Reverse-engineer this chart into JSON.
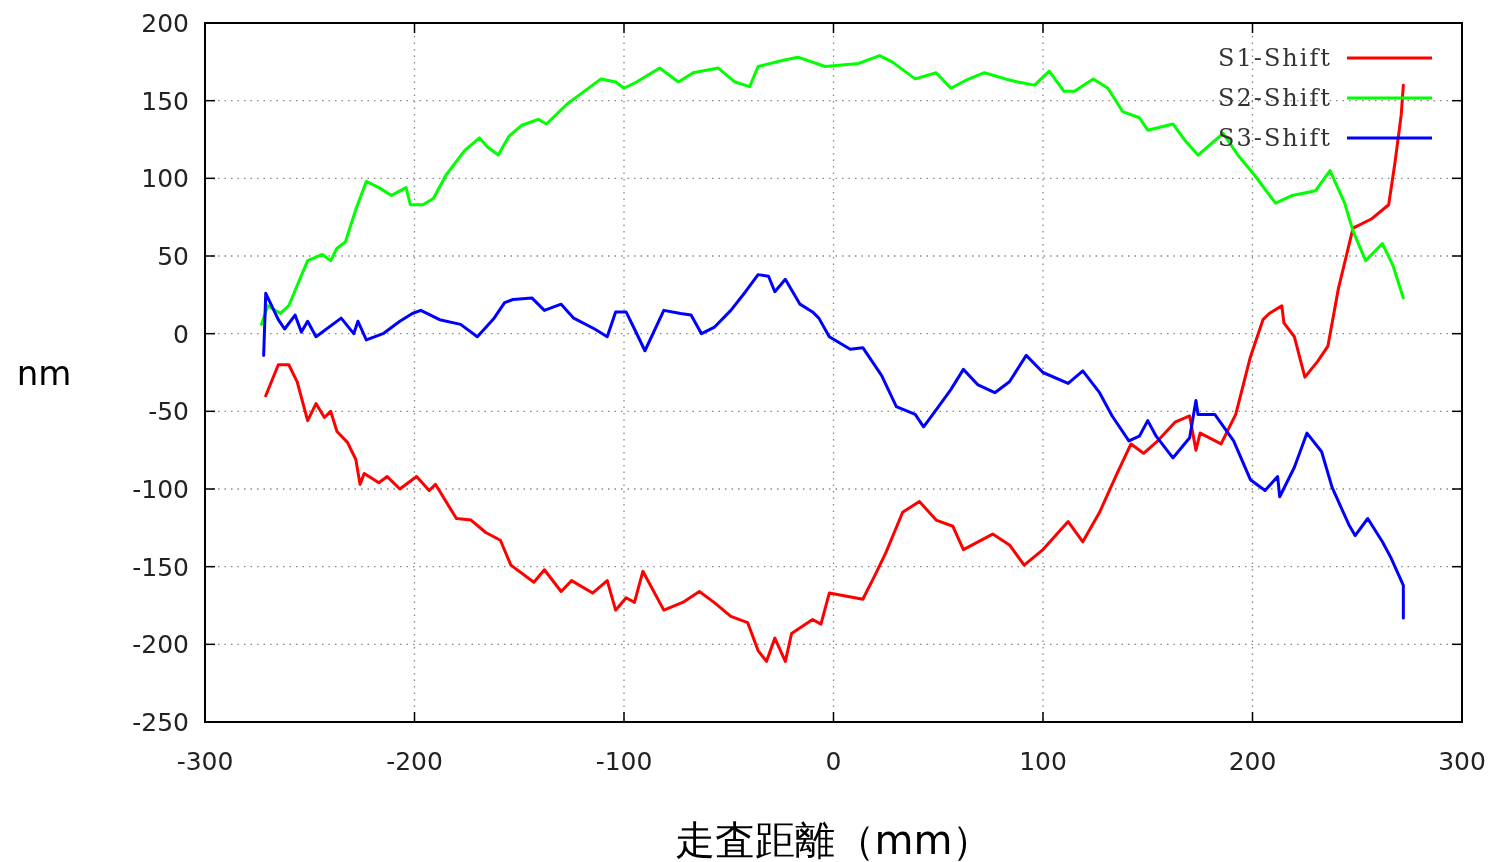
{
  "chart_data": {
    "type": "line",
    "xlabel": "走査距離（mm）",
    "ylabel": "nm",
    "xlim": [
      -300,
      300
    ],
    "xticks": [
      -300,
      -200,
      -100,
      0,
      100,
      200,
      300
    ],
    "ylim": [
      -250,
      200
    ],
    "yticks": [
      -250,
      -200,
      -150,
      -100,
      -50,
      0,
      50,
      100,
      150,
      200
    ],
    "grid": true,
    "legend": "top right",
    "series": [
      {
        "name": "S1-Shift",
        "color": "#ff0000",
        "x": [
          -271,
          -265,
          -260,
          -256,
          -251,
          -247,
          -243,
          -240,
          -237,
          -232,
          -228,
          -226,
          -224,
          -217,
          -213,
          -207,
          -199,
          -193,
          -190,
          -180,
          -173,
          -166,
          -159,
          -154,
          -143,
          -138,
          -130,
          -125,
          -115,
          -108,
          -104,
          -99,
          -95,
          -91,
          -81,
          -72,
          -64,
          -57,
          -49,
          -41,
          -36,
          -32,
          -28,
          -23,
          -20,
          -10,
          -6,
          -2,
          14,
          20,
          25,
          33,
          41,
          49,
          57,
          62,
          76,
          84,
          91,
          100,
          112,
          119,
          127,
          135,
          142,
          148,
          154,
          163,
          170,
          173,
          175,
          185,
          192,
          199,
          205,
          208,
          214,
          215,
          220,
          225,
          231,
          236,
          241,
          248,
          257,
          265,
          268,
          271,
          272
        ],
        "values": [
          -40,
          -20,
          -20,
          -31,
          -56,
          -45,
          -54,
          -50,
          -63,
          -70,
          -81,
          -97,
          -90,
          -96,
          -92,
          -100,
          -92,
          -101,
          -97,
          -119,
          -120,
          -128,
          -133,
          -149,
          -160,
          -152,
          -166,
          -159,
          -167,
          -159,
          -178,
          -170,
          -173,
          -153,
          -178,
          -173,
          -166,
          -173,
          -182,
          -186,
          -204,
          -211,
          -196,
          -211,
          -193,
          -184,
          -187,
          -167,
          -171,
          -155,
          -141,
          -115,
          -108,
          -120,
          -124,
          -139,
          -129,
          -136,
          -149,
          -139,
          -121,
          -134,
          -115,
          -91,
          -71,
          -77,
          -70,
          -57,
          -53,
          -75,
          -64,
          -71,
          -52,
          -15,
          9,
          13,
          18,
          7,
          -2,
          -28,
          -18,
          -8,
          29,
          68,
          74,
          83,
          110,
          141,
          160
        ]
      },
      {
        "name": "S2-Shift",
        "color": "#00ff00",
        "x": [
          -273,
          -270,
          -264,
          -260,
          -256,
          -251,
          -244,
          -240,
          -237,
          -233,
          -228,
          -223,
          -217,
          -211,
          -204,
          -202,
          -196,
          -191,
          -185,
          -176,
          -169,
          -165,
          -160,
          -155,
          -149,
          -141,
          -137,
          -127,
          -119,
          -111,
          -104,
          -100,
          -94,
          -83,
          -74,
          -67,
          -55,
          -47,
          -40,
          -36,
          -24,
          -17,
          -4,
          12,
          22,
          28,
          39,
          49,
          56,
          63,
          72,
          82,
          88,
          96,
          103,
          110,
          115,
          124,
          131,
          138,
          146,
          150,
          162,
          168,
          174,
          186,
          193,
          201,
          211,
          219,
          230,
          237,
          244,
          248,
          254,
          262,
          267,
          272
        ],
        "values": [
          6,
          18,
          13,
          18,
          31,
          47,
          51,
          47,
          55,
          59,
          80,
          98,
          94,
          89,
          94,
          83,
          83,
          87,
          102,
          118,
          126,
          120,
          115,
          127,
          134,
          138,
          135,
          148,
          156,
          164,
          162,
          158,
          162,
          171,
          162,
          168,
          171,
          162,
          159,
          172,
          176,
          178,
          172,
          174,
          179,
          175,
          164,
          168,
          158,
          163,
          168,
          164,
          162,
          160,
          169,
          156,
          156,
          164,
          158,
          143,
          139,
          131,
          135,
          124,
          115,
          129,
          115,
          102,
          84,
          89,
          92,
          105,
          84,
          66,
          47,
          58,
          44,
          23
        ]
      },
      {
        "name": "S3-Shift",
        "color": "#0000ff",
        "x": [
          -272,
          -271,
          -265,
          -262,
          -257,
          -254,
          -251,
          -247,
          -235,
          -229,
          -227,
          -223,
          -215,
          -207,
          -201,
          -197,
          -188,
          -178,
          -170,
          -162,
          -157,
          -153,
          -144,
          -138,
          -130,
          -124,
          -114,
          -108,
          -104,
          -99,
          -95,
          -90,
          -81,
          -73,
          -68,
          -63,
          -57,
          -49,
          -42,
          -36,
          -31,
          -28,
          -23,
          -16,
          -10,
          -7,
          -2,
          8,
          14,
          23,
          30,
          39,
          43,
          49,
          56,
          62,
          69,
          77,
          84,
          92,
          100,
          112,
          119,
          127,
          133,
          141,
          146,
          150,
          154,
          162,
          170,
          173,
          174,
          182,
          191,
          199,
          206,
          212,
          213,
          220,
          226,
          233,
          238,
          246,
          249,
          255,
          262,
          266,
          272,
          272
        ],
        "values": [
          -14,
          26,
          9,
          3,
          12,
          1,
          8,
          -2,
          10,
          0,
          8,
          -4,
          0,
          8,
          13,
          15,
          9,
          6,
          -2,
          10,
          20,
          22,
          23,
          15,
          19,
          10,
          3,
          -2,
          14,
          14,
          3,
          -11,
          15,
          13,
          12,
          0,
          4,
          15,
          27,
          38,
          37,
          27,
          35,
          19,
          14,
          10,
          -2,
          -10,
          -9,
          -27,
          -47,
          -52,
          -60,
          -49,
          -36,
          -23,
          -33,
          -38,
          -31,
          -14,
          -25,
          -32,
          -24,
          -38,
          -53,
          -69,
          -66,
          -56,
          -66,
          -80,
          -67,
          -43,
          -52,
          -52,
          -69,
          -94,
          -101,
          -92,
          -105,
          -86,
          -64,
          -76,
          -99,
          -123,
          -130,
          -119,
          -134,
          -144,
          -162,
          -183
        ]
      }
    ]
  }
}
